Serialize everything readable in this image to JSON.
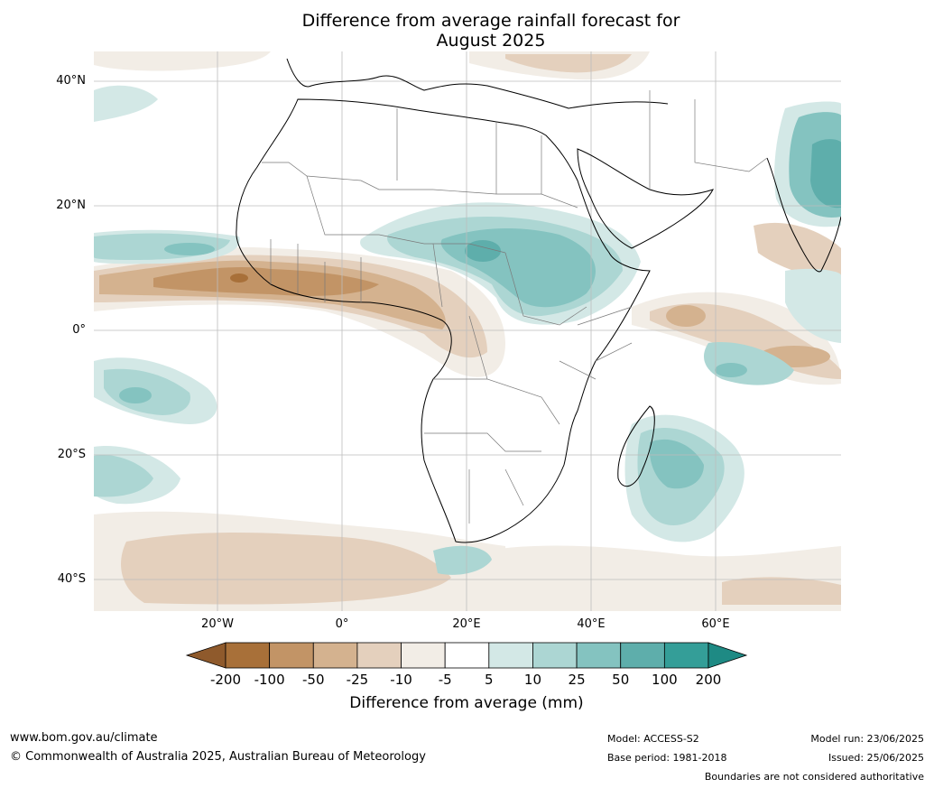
{
  "title": {
    "line1": "Difference from average rainfall forecast for",
    "line2": "August 2025"
  },
  "axes": {
    "lat_labels": [
      "40°N",
      "20°N",
      "0°",
      "20°S",
      "40°S"
    ],
    "lon_labels": [
      "20°W",
      "0°",
      "20°E",
      "40°E",
      "60°E"
    ]
  },
  "colorbar": {
    "title": "Difference from average (mm)",
    "labels": [
      "-200",
      "-100",
      "-50",
      "-25",
      "-10",
      "-5",
      "5",
      "10",
      "25",
      "50",
      "100",
      "200"
    ],
    "colors": [
      "#a87039",
      "#c29466",
      "#d4b28f",
      "#e4d0bd",
      "#f2ede6",
      "#ffffff",
      "#d3e8e6",
      "#acd6d3",
      "#84c3c0",
      "#5eaeab",
      "#349e98"
    ],
    "under_color": "#8f5a2c",
    "over_color": "#1e8a84"
  },
  "footer": {
    "url": "www.bom.gov.au/climate",
    "copyright": "© Commonwealth of Australia 2025, Australian Bureau of Meteorology",
    "model": "Model: ACCESS-S2",
    "base_period": "Base period: 1981-2018",
    "model_run": "Model run: 23/06/2025",
    "issued": "Issued: 25/06/2025",
    "disclaimer": "Boundaries are not considered authoritative"
  }
}
